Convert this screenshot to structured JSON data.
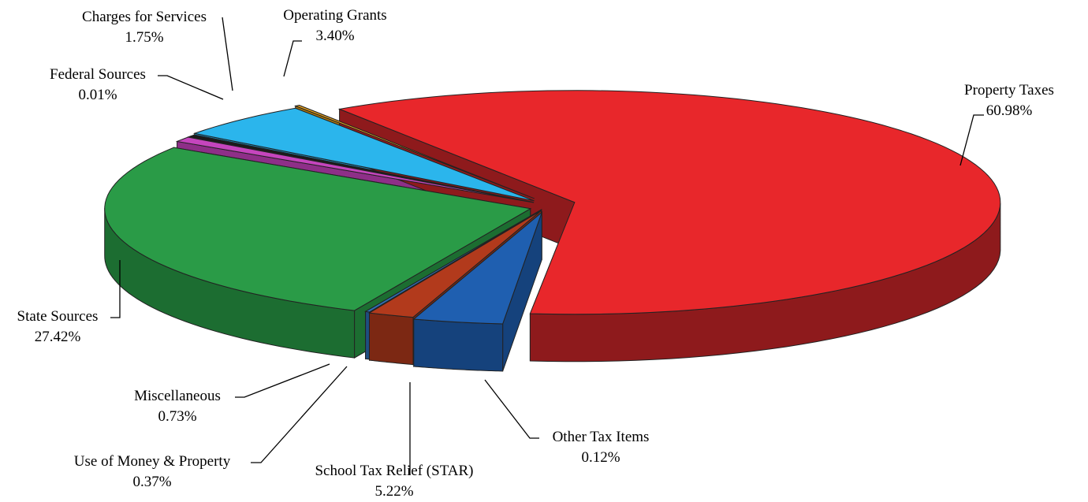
{
  "chart_data": {
    "type": "pie",
    "style": "3d-exploded",
    "title": "",
    "legend": "none",
    "slices": [
      {
        "label": "Property Taxes",
        "value": 60.98,
        "value_label": "60.98%",
        "color": "#e8272b",
        "side_color": "#8e1a1c"
      },
      {
        "label": "Other Tax Items",
        "value": 0.12,
        "value_label": "0.12%",
        "color": "#f2a81c",
        "side_color": "#a8760f"
      },
      {
        "label": "School Tax Relief (STAR)",
        "value": 5.22,
        "value_label": "5.22%",
        "color": "#2bb5ec",
        "side_color": "#1986b3"
      },
      {
        "label": "Use of Money & Property",
        "value": 0.37,
        "value_label": "0.37%",
        "color": "#1a1a1a",
        "side_color": "#0a0a0a"
      },
      {
        "label": "Miscellaneous",
        "value": 0.73,
        "value_label": "0.73%",
        "color": "#c545bd",
        "side_color": "#8e2f88"
      },
      {
        "label": "State Sources",
        "value": 27.42,
        "value_label": "27.42%",
        "color": "#2a9b47",
        "side_color": "#1c6d31"
      },
      {
        "label": "Federal Sources",
        "value": 0.01,
        "value_label": "0.01%",
        "color": "#2f6fb3",
        "side_color": "#1f4e80"
      },
      {
        "label": "Charges for Services",
        "value": 1.75,
        "value_label": "1.75%",
        "color": "#b23a1c",
        "side_color": "#7c2813"
      },
      {
        "label": "Operating Grants",
        "value": 3.4,
        "value_label": "3.40%",
        "color": "#1f5fb0",
        "side_color": "#15427c"
      }
    ]
  }
}
